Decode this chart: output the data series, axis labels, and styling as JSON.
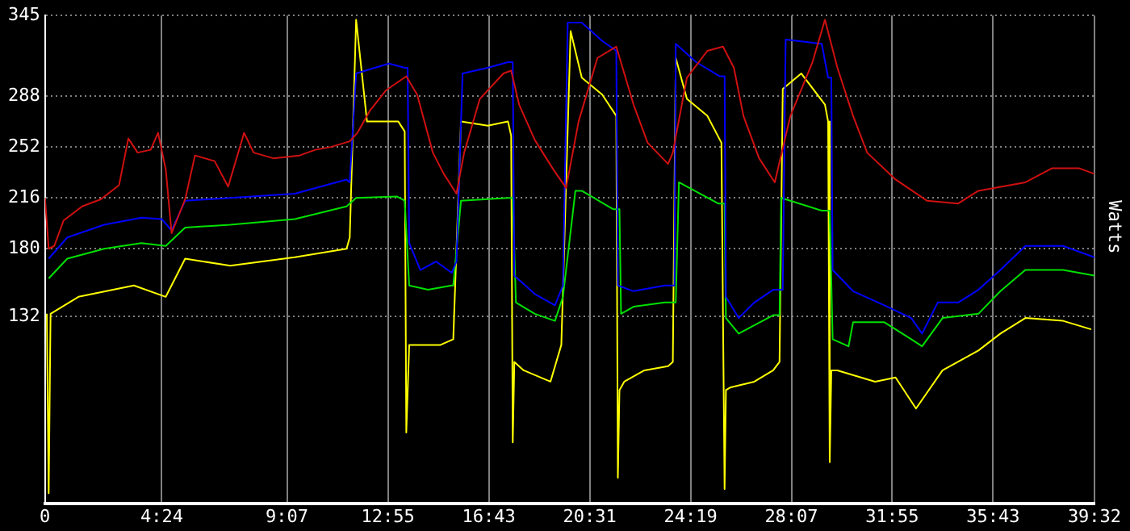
{
  "chart_data": {
    "type": "line",
    "ylabel": "Watts",
    "xlim": [
      0,
      39.5333
    ],
    "ylim": [
      0,
      345
    ],
    "xticks": [
      0,
      {
        "value": 4.4,
        "label": "4:24"
      },
      {
        "value": 9.1167,
        "label": "9:07"
      },
      {
        "value": 12.9167,
        "label": "12:55"
      },
      {
        "value": 16.7167,
        "label": "16:43"
      },
      {
        "value": 20.5167,
        "label": "20:31"
      },
      {
        "value": 24.3167,
        "label": "24:19"
      },
      {
        "value": 28.1167,
        "label": "28:07"
      },
      {
        "value": 31.9167,
        "label": "31:55"
      },
      {
        "value": 35.7167,
        "label": "35:43"
      },
      {
        "value": 39.5333,
        "label": "39:32"
      }
    ],
    "yticks": [
      132,
      180,
      216,
      252,
      288,
      345
    ],
    "grid": true,
    "series": [
      {
        "color": "#d01010",
        "x": [
          0,
          0.14,
          0.35,
          0.7,
          1.4,
          2.1,
          2.79,
          3.14,
          3.49,
          3.98,
          4.26,
          4.55,
          4.77,
          5.28,
          5.65,
          6.39,
          6.9,
          7.5,
          7.86,
          8.6,
          9.59,
          10.18,
          10.77,
          11.48,
          11.77,
          12.25,
          12.84,
          13.61,
          14.02,
          14.61,
          15.02,
          15.5,
          15.79,
          16.38,
          17.27,
          17.56,
          17.86,
          18.45,
          19.15,
          19.63,
          20.1,
          20.81,
          21.52,
          22.17,
          22.7,
          23.47,
          23.65,
          24.18,
          24.95,
          25.54,
          25.95,
          26.31,
          26.9,
          27.49,
          28.08,
          28.91,
          29.38,
          29.85,
          30.44,
          30.97,
          32.04,
          33.22,
          34.4,
          35.16,
          36.93,
          37.94,
          38.94,
          39.53
        ],
        "values": [
          216,
          180,
          182,
          200,
          210,
          215,
          225,
          258,
          248,
          250,
          262,
          236,
          191,
          215,
          246,
          242,
          224,
          262,
          248,
          244,
          246,
          250,
          252,
          256,
          262,
          278,
          292,
          302,
          289,
          248,
          233,
          219,
          248,
          286,
          304,
          306,
          282,
          257,
          236,
          223,
          270,
          315,
          323,
          282,
          255,
          240,
          248,
          301,
          320,
          323,
          308,
          274,
          244,
          227,
          274,
          312,
          342,
          308,
          274,
          248,
          229,
          214,
          212,
          221,
          227,
          237,
          237,
          233
        ]
      },
      {
        "color": "#0000ff",
        "x": [
          0.14,
          0.84,
          2.23,
          3.63,
          4.4,
          4.77,
          5.28,
          6.98,
          9.41,
          11.36,
          11.48,
          11.72,
          12.96,
          13.55,
          13.66,
          13.72,
          14.14,
          14.73,
          15.32,
          15.5,
          15.73,
          16.68,
          17.44,
          17.62,
          17.68,
          18.45,
          19.21,
          19.51,
          19.69,
          20.22,
          20.99,
          21.52,
          21.58,
          22.17,
          23.35,
          23.71,
          23.76,
          24.53,
          25.42,
          25.6,
          25.65,
          26.13,
          26.72,
          27.43,
          27.79,
          27.9,
          29.26,
          29.5,
          29.62,
          29.67,
          30.44,
          31.62,
          32.63,
          33.04,
          33.63,
          34.4,
          35.16,
          35.99,
          36.93,
          38.35,
          39.53
        ],
        "values": [
          173,
          188,
          197,
          202,
          201,
          193,
          214,
          216,
          219,
          229,
          227,
          304,
          311,
          308,
          308,
          184,
          165,
          171,
          163,
          171,
          304,
          308,
          312,
          312,
          161,
          148,
          140,
          154,
          340,
          340,
          327,
          320,
          154,
          150,
          154,
          154,
          325,
          312,
          302,
          302,
          146,
          131,
          142,
          151,
          151,
          328,
          325,
          301,
          301,
          165,
          150,
          140,
          131,
          120,
          142,
          142,
          151,
          165,
          182,
          182,
          174
        ]
      },
      {
        "color": "#00e000",
        "x": [
          0.14,
          0.84,
          2.23,
          3.63,
          4.55,
          5.28,
          6.98,
          9.41,
          11.36,
          11.72,
          13.25,
          13.55,
          13.72,
          14.43,
          15.32,
          15.38,
          15.67,
          17.44,
          17.62,
          17.74,
          18.45,
          19.21,
          19.51,
          19.98,
          20.22,
          21.4,
          21.64,
          21.7,
          22.17,
          23.35,
          23.76,
          23.88,
          25.36,
          25.6,
          25.65,
          26.13,
          27.43,
          27.67,
          27.73,
          29.26,
          29.56,
          29.67,
          30.27,
          30.44,
          31.62,
          32.63,
          33.04,
          33.81,
          35.16,
          35.99,
          36.93,
          38.35,
          39.53
        ],
        "values": [
          159,
          173,
          180,
          184,
          182,
          195,
          197,
          201,
          210,
          216,
          217,
          214,
          154,
          151,
          154,
          154,
          214,
          216,
          216,
          142,
          134,
          129,
          146,
          221,
          221,
          208,
          208,
          134,
          139,
          142,
          142,
          227,
          212,
          212,
          131,
          120,
          133,
          133,
          216,
          207,
          207,
          116,
          111,
          128,
          128,
          116,
          111,
          131,
          134,
          150,
          165,
          165,
          161
        ]
      },
      {
        "color": "#ffff00",
        "x": [
          0.07,
          0.14,
          0.21,
          1.26,
          3.35,
          4.55,
          5.28,
          6.98,
          9.41,
          11.36,
          11.48,
          11.72,
          12.13,
          13.31,
          13.55,
          13.61,
          13.72,
          14.14,
          14.9,
          15.38,
          15.67,
          16.68,
          17.44,
          17.56,
          17.62,
          17.68,
          18.03,
          19.04,
          19.45,
          19.8,
          20.22,
          20.99,
          21.52,
          21.58,
          21.64,
          21.82,
          22.58,
          23.47,
          23.65,
          23.76,
          24.18,
          24.95,
          25.48,
          25.6,
          25.65,
          25.83,
          26.72,
          27.43,
          27.67,
          27.79,
          28.49,
          29.38,
          29.5,
          29.56,
          29.62,
          29.85,
          31.27,
          32.04,
          32.81,
          33.81,
          35.16,
          35.99,
          36.93,
          38.35,
          39.41
        ],
        "values": [
          134,
          7,
          134,
          146,
          154,
          146,
          173,
          168,
          174,
          180,
          188,
          342,
          270,
          270,
          263,
          50,
          112,
          112,
          112,
          116,
          270,
          267,
          270,
          260,
          43,
          100,
          94,
          86,
          112,
          334,
          301,
          289,
          274,
          18,
          80,
          86,
          94,
          97,
          100,
          315,
          286,
          274,
          255,
          10,
          80,
          82,
          86,
          94,
          100,
          293,
          304,
          282,
          270,
          29,
          94,
          94,
          86,
          89,
          67,
          94,
          108,
          120,
          131,
          129,
          123
        ]
      }
    ]
  }
}
